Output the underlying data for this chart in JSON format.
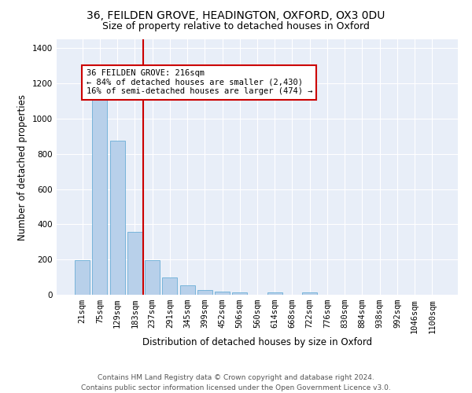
{
  "title1": "36, FEILDEN GROVE, HEADINGTON, OXFORD, OX3 0DU",
  "title2": "Size of property relative to detached houses in Oxford",
  "xlabel": "Distribution of detached houses by size in Oxford",
  "ylabel": "Number of detached properties",
  "bar_color": "#b8d0ea",
  "bar_edge_color": "#6aaed6",
  "background_color": "#e8eef8",
  "grid_color": "#ffffff",
  "categories": [
    "21sqm",
    "75sqm",
    "129sqm",
    "183sqm",
    "237sqm",
    "291sqm",
    "345sqm",
    "399sqm",
    "452sqm",
    "506sqm",
    "560sqm",
    "614sqm",
    "668sqm",
    "722sqm",
    "776sqm",
    "830sqm",
    "884sqm",
    "938sqm",
    "992sqm",
    "1046sqm",
    "1100sqm"
  ],
  "values": [
    195,
    1130,
    875,
    355,
    195,
    100,
    55,
    25,
    20,
    15,
    0,
    12,
    0,
    12,
    0,
    0,
    0,
    0,
    0,
    0,
    0
  ],
  "vline_x": 3.5,
  "vline_color": "#cc0000",
  "annotation_text": "36 FEILDEN GROVE: 216sqm\n← 84% of detached houses are smaller (2,430)\n16% of semi-detached houses are larger (474) →",
  "annotation_box_color": "#ffffff",
  "annotation_box_edge": "#cc0000",
  "ylim": [
    0,
    1450
  ],
  "yticks": [
    0,
    200,
    400,
    600,
    800,
    1000,
    1200,
    1400
  ],
  "footnote": "Contains HM Land Registry data © Crown copyright and database right 2024.\nContains public sector information licensed under the Open Government Licence v3.0.",
  "title1_fontsize": 10,
  "title2_fontsize": 9,
  "xlabel_fontsize": 8.5,
  "ylabel_fontsize": 8.5,
  "tick_fontsize": 7.5,
  "annotation_fontsize": 7.5,
  "footnote_fontsize": 6.5
}
